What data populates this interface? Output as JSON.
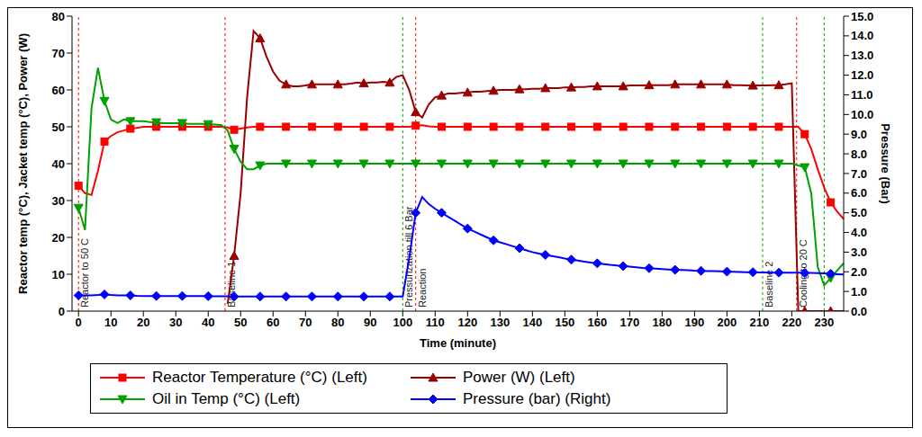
{
  "chart_data": {
    "type": "line",
    "x_label": "Time (minute)",
    "y_label": "Reactor temp (°C), Jacket temp (°C), Power (W)",
    "y2_label": "Pressure (Bar)",
    "grid": false,
    "legend": "bottom",
    "xlim": [
      -2,
      236
    ],
    "xticks": [
      0,
      10,
      20,
      30,
      40,
      50,
      60,
      70,
      80,
      90,
      100,
      110,
      120,
      130,
      140,
      150,
      160,
      170,
      180,
      190,
      200,
      210,
      220,
      230
    ],
    "ylim": [
      0,
      80
    ],
    "yticks": [
      0,
      10,
      20,
      30,
      40,
      50,
      60,
      70,
      80
    ],
    "y2lim": [
      0,
      15
    ],
    "y2ticks": [
      {
        "value": 0,
        "label": "0.0"
      },
      {
        "value": 1,
        "label": "1.0"
      },
      {
        "value": 2,
        "label": "2.0"
      },
      {
        "value": 3,
        "label": "3.0"
      },
      {
        "value": 4,
        "label": "4.0"
      },
      {
        "value": 5,
        "label": "5.0"
      },
      {
        "value": 6,
        "label": "6.0"
      },
      {
        "value": 7,
        "label": "7.0"
      },
      {
        "value": 8,
        "label": "8.0"
      },
      {
        "value": 9,
        "label": "9.0"
      },
      {
        "value": 10,
        "label": "10.0"
      },
      {
        "value": 11,
        "label": "11.0"
      },
      {
        "value": 12,
        "label": "12.0"
      },
      {
        "value": 13,
        "label": "13.0"
      },
      {
        "value": 14,
        "label": "14.0"
      },
      {
        "value": 15,
        "label": "15.0"
      }
    ],
    "x": [
      0,
      2,
      4,
      6,
      8,
      10,
      12,
      14,
      16,
      18,
      20,
      22,
      24,
      26,
      28,
      30,
      32,
      34,
      36,
      38,
      40,
      42,
      44,
      46,
      48,
      50,
      52,
      54,
      56,
      58,
      60,
      62,
      64,
      66,
      68,
      70,
      72,
      74,
      76,
      78,
      80,
      82,
      84,
      86,
      88,
      90,
      92,
      94,
      96,
      98,
      100,
      102,
      104,
      106,
      108,
      110,
      112,
      114,
      116,
      118,
      120,
      122,
      124,
      126,
      128,
      130,
      132,
      134,
      136,
      138,
      140,
      142,
      144,
      146,
      148,
      150,
      152,
      154,
      156,
      158,
      160,
      162,
      164,
      166,
      168,
      170,
      172,
      174,
      176,
      178,
      180,
      182,
      184,
      186,
      188,
      190,
      192,
      194,
      196,
      198,
      200,
      202,
      204,
      206,
      208,
      210,
      212,
      214,
      216,
      218,
      220,
      222,
      224,
      226,
      228,
      230,
      232,
      234,
      236
    ],
    "series": [
      {
        "name": "Reactor Temperature (°C) (Left)",
        "color": "#ff0000",
        "marker": "square",
        "values": [
          34,
          32,
          31.5,
          38,
          46,
          47.5,
          48.5,
          49,
          49.5,
          49.7,
          50,
          50,
          50,
          50,
          50,
          50,
          50,
          50,
          50,
          50,
          50,
          50,
          50,
          49.8,
          49.2,
          49.5,
          49.8,
          50,
          50,
          50,
          50,
          50,
          50,
          50,
          50,
          50,
          50,
          50,
          50,
          50,
          50,
          50,
          50,
          50,
          50,
          50,
          50,
          50,
          50,
          50,
          50,
          50,
          50.3,
          50.4,
          50.1,
          50,
          50,
          50,
          50,
          50,
          50,
          50,
          50,
          50,
          50,
          50,
          50,
          50,
          50,
          50,
          50,
          50,
          50,
          50,
          50,
          50,
          50,
          50,
          50,
          50,
          50,
          50,
          50,
          50,
          50,
          50,
          50,
          50,
          50,
          50,
          50,
          50,
          50,
          50,
          50,
          50,
          50,
          50,
          50,
          50,
          50,
          50,
          50,
          50,
          50,
          50,
          50,
          50,
          50,
          50,
          50,
          50,
          48,
          44,
          38.5,
          33.5,
          29.5,
          27,
          25
        ]
      },
      {
        "name": "Power (W) (Left)",
        "color": "#990000",
        "marker": "triangle-up",
        "values": [
          null,
          null,
          null,
          null,
          null,
          null,
          null,
          null,
          null,
          null,
          null,
          null,
          null,
          null,
          null,
          null,
          null,
          null,
          null,
          null,
          null,
          null,
          null,
          2,
          15,
          32,
          58,
          76,
          74,
          69,
          65,
          62.5,
          61.5,
          61,
          61,
          61.2,
          61.5,
          61.5,
          61.5,
          61.5,
          61.5,
          61.5,
          61.7,
          62,
          61.8,
          62,
          62,
          62.2,
          62,
          63.5,
          64,
          60,
          54,
          52.5,
          56,
          58,
          58.5,
          59,
          59,
          59.2,
          59.3,
          59.5,
          59.5,
          59.7,
          59.8,
          60,
          60,
          60,
          60.2,
          60.2,
          60.3,
          60.3,
          60.5,
          60.5,
          60.5,
          60.7,
          60.7,
          60.8,
          60.8,
          61,
          61,
          61,
          61,
          61,
          61,
          61.2,
          61.2,
          61.2,
          61.3,
          61.3,
          61.3,
          61.3,
          61.5,
          61.5,
          61.5,
          61.5,
          61.5,
          61.5,
          61.5,
          61.5,
          61.5,
          61.3,
          61.3,
          61.2,
          61.2,
          61.2,
          61.2,
          61.3,
          61.3,
          61.5,
          61.8,
          0,
          0,
          0,
          0,
          0,
          0,
          0,
          0
        ]
      },
      {
        "name": "Oil in Temp (°C) (Left)",
        "color": "#00a000",
        "marker": "triangle-down",
        "values": [
          28,
          22,
          55,
          66,
          57,
          52,
          51,
          52,
          51.5,
          51.5,
          51.5,
          51.3,
          51.2,
          51,
          51,
          51,
          51,
          50.8,
          50.8,
          50.8,
          50.7,
          50.6,
          50.5,
          49,
          44,
          40.5,
          38.5,
          38.5,
          39.5,
          40,
          40,
          40,
          40,
          40,
          40,
          40,
          40,
          40,
          40,
          40,
          40,
          40,
          40,
          40,
          40,
          40,
          40,
          40,
          40,
          40,
          40,
          40,
          40,
          40,
          40,
          40,
          40,
          40,
          40,
          40,
          40,
          40,
          40,
          40,
          40,
          40,
          40,
          40,
          40,
          40,
          40,
          40,
          40,
          40,
          40,
          40,
          40,
          40,
          40,
          40,
          40,
          40,
          40,
          40,
          40,
          40,
          40,
          40,
          40,
          40,
          40,
          40,
          40,
          40,
          40,
          40,
          40,
          40,
          40,
          40,
          40,
          40,
          40,
          40,
          40,
          40,
          40,
          40,
          40,
          40,
          40,
          39.5,
          39,
          32,
          12,
          7,
          9,
          11,
          13
        ]
      },
      {
        "name": "Pressure (bar) (Right)",
        "color": "#0000ff",
        "marker": "diamond",
        "axis": "y2",
        "values": [
          0.8,
          0.8,
          0.8,
          0.82,
          0.85,
          0.82,
          0.8,
          0.8,
          0.8,
          0.78,
          0.77,
          0.77,
          0.77,
          0.77,
          0.77,
          0.77,
          0.77,
          0.77,
          0.77,
          0.77,
          0.76,
          0.76,
          0.76,
          0.75,
          0.74,
          0.74,
          0.74,
          0.74,
          0.74,
          0.74,
          0.74,
          0.74,
          0.74,
          0.74,
          0.74,
          0.74,
          0.74,
          0.74,
          0.74,
          0.74,
          0.74,
          0.74,
          0.74,
          0.74,
          0.74,
          0.74,
          0.74,
          0.74,
          0.74,
          0.74,
          0.74,
          2.7,
          5,
          5.8,
          5.45,
          5.2,
          5,
          4.8,
          4.6,
          4.4,
          4.2,
          4.05,
          3.9,
          3.75,
          3.6,
          3.5,
          3.4,
          3.3,
          3.2,
          3.1,
          3,
          2.93,
          2.86,
          2.8,
          2.74,
          2.68,
          2.62,
          2.57,
          2.52,
          2.47,
          2.43,
          2.39,
          2.35,
          2.32,
          2.29,
          2.26,
          2.23,
          2.2,
          2.18,
          2.16,
          2.14,
          2.12,
          2.1,
          2.09,
          2.08,
          2.06,
          2.05,
          2.04,
          2.03,
          2.02,
          2.01,
          2,
          1.99,
          1.98,
          1.98,
          1.97,
          1.97,
          1.96,
          1.96,
          1.95,
          1.95,
          1.95,
          1.94,
          1.94,
          1.93,
          1.92,
          1.9,
          1.88,
          1.86
        ]
      }
    ],
    "annotations": [
      {
        "x": 0,
        "text": "Reactor to 50 C",
        "color": "#ff0000"
      },
      {
        "x": 45.2,
        "text": "Baseline 1",
        "color": "#ff0000"
      },
      {
        "x": 100,
        "text": "Pressurization till 6 Bar",
        "color": "#00a000"
      },
      {
        "x": 104,
        "text": "Reaction",
        "color": "#ff0000"
      },
      {
        "x": 211,
        "text": "Baseline 2",
        "color": "#00a000"
      },
      {
        "x": 221.5,
        "text": "Cooling to 20 C",
        "color": "#ff0000"
      },
      {
        "x": 230,
        "color": "#00a000"
      }
    ]
  }
}
